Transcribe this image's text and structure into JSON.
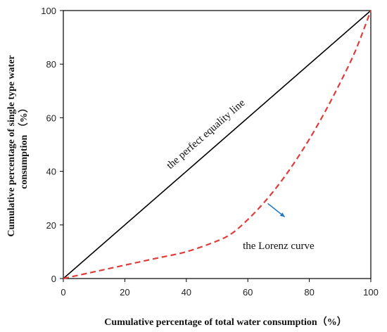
{
  "chart_data": {
    "type": "line",
    "xlabel": "Cumulative percentage of total water consumption（%）",
    "ylabel_lines": [
      "Cumulative percentage of single type water",
      "consumption （%）"
    ],
    "xlim": [
      0,
      100
    ],
    "ylim": [
      0,
      100
    ],
    "x_ticks": [
      "0",
      "20",
      "40",
      "60",
      "80",
      "100"
    ],
    "y_ticks": [
      "0",
      "20",
      "40",
      "60",
      "80",
      "100"
    ],
    "grid": false,
    "series": [
      {
        "style": "solid",
        "color": "#000000",
        "x": [
          0,
          100
        ],
        "y": [
          0,
          100
        ]
      },
      {
        "style": "dashed",
        "color": "#e03c3c",
        "x": [
          0,
          10,
          20,
          30,
          40,
          50,
          55,
          60,
          65,
          70,
          75,
          80,
          85,
          90,
          95,
          100
        ],
        "y": [
          0,
          2.5,
          5,
          7.5,
          10,
          14,
          17,
          22,
          28,
          35,
          43,
          52,
          62,
          73,
          85,
          100
        ]
      }
    ],
    "annotations": [
      {
        "text": "the perfect equality line",
        "x": 47,
        "y": 53,
        "rotate_along_series": 0
      },
      {
        "text": "the Lorenz curve",
        "x": 70,
        "y": 11
      }
    ],
    "arrow": {
      "from": [
        66.5,
        28
      ],
      "to": [
        72,
        23
      ],
      "color": "#1f77c4"
    }
  }
}
